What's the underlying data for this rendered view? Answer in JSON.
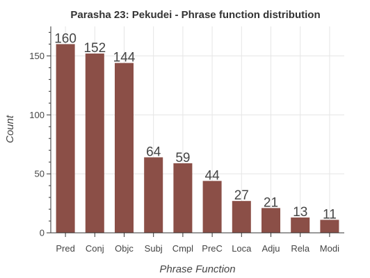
{
  "chart_data": {
    "type": "bar",
    "title": "Parasha 23: Pekudei - Phrase function distribution",
    "xlabel": "Phrase Function",
    "ylabel": "Count",
    "categories": [
      "Pred",
      "Conj",
      "Objc",
      "Subj",
      "Cmpl",
      "PreC",
      "Loca",
      "Adju",
      "Rela",
      "Modi"
    ],
    "values": [
      160,
      152,
      144,
      64,
      59,
      44,
      27,
      21,
      13,
      11
    ],
    "data_labels": [
      "160",
      "152",
      "144",
      "64",
      "59",
      "44",
      "27",
      "21",
      "13",
      "11"
    ],
    "ylim": [
      0,
      175
    ],
    "yticks": [
      0,
      50,
      100,
      150
    ],
    "ytick_labels": [
      "0",
      "50",
      "100",
      "150"
    ],
    "grid": true,
    "legend": "none",
    "bar_color": "#8b4f47"
  }
}
